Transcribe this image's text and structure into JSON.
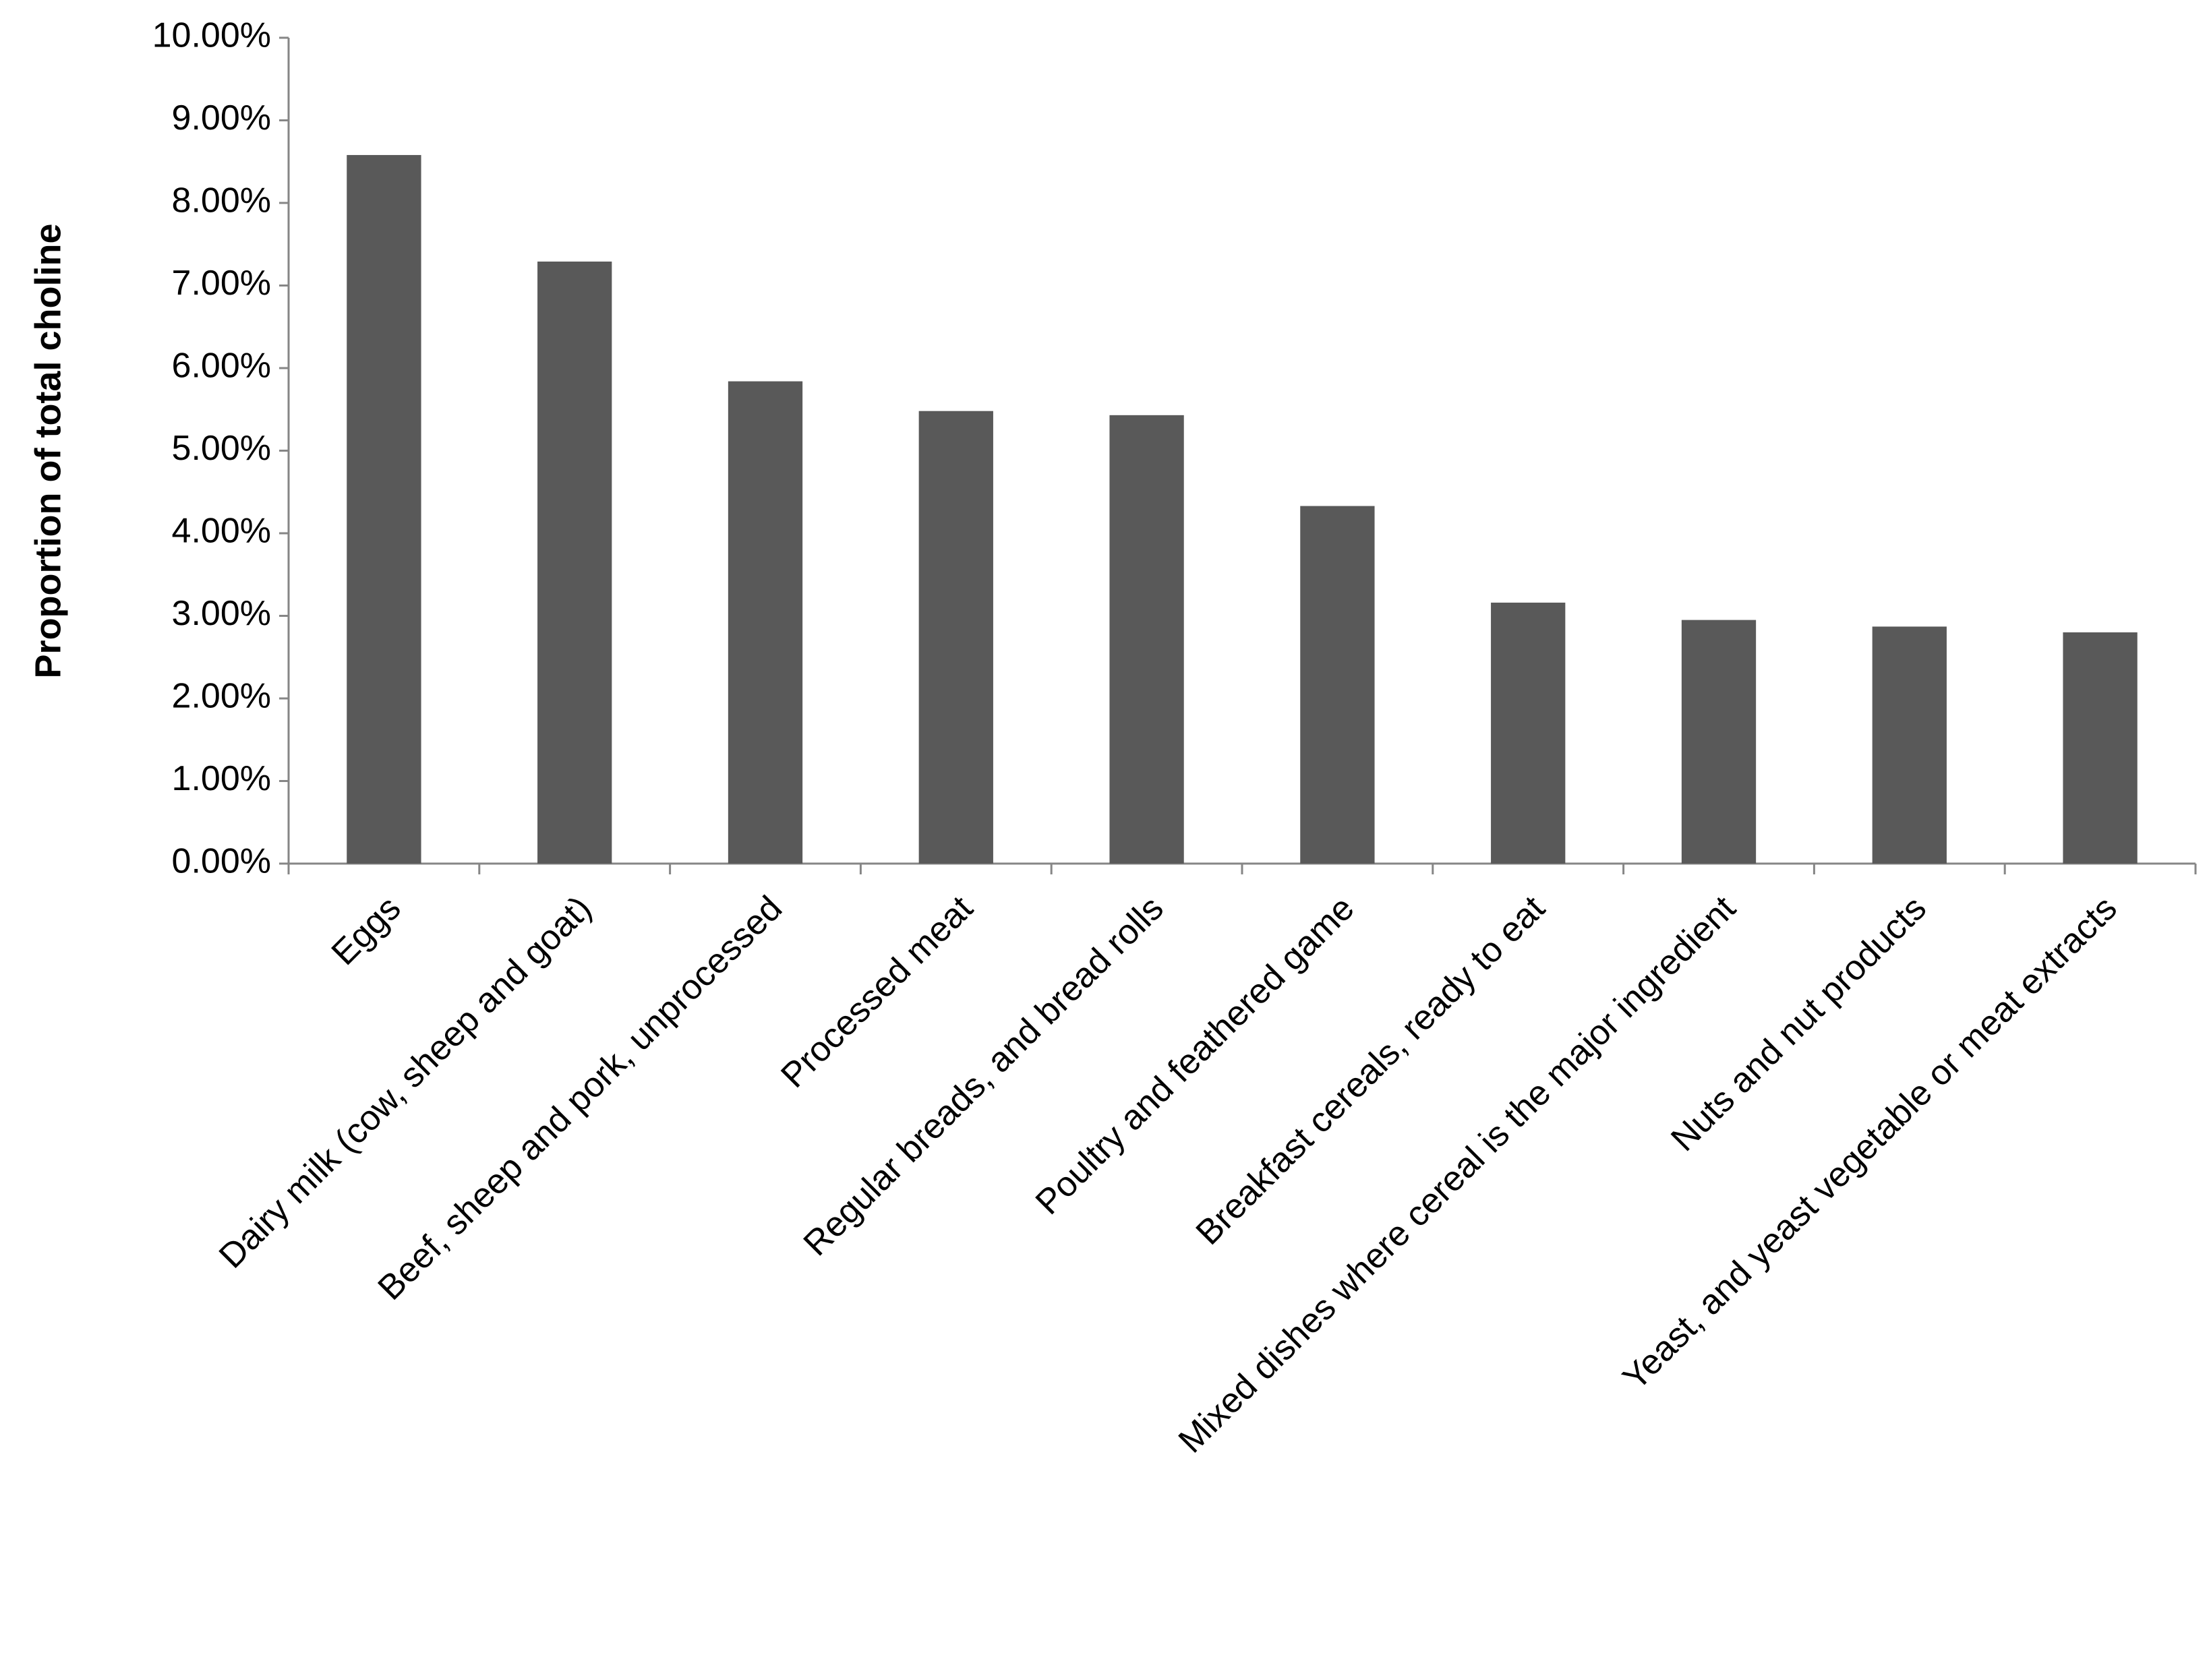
{
  "chart_data": {
    "type": "bar",
    "y_label": "Proportion of total choline",
    "categories": [
      "Eggs",
      "Dairy milk (cow, sheep and goat)",
      "Beef, sheep and pork, unprocessed",
      "Processed meat",
      "Regular breads, and bread rolls",
      "Poultry and feathered game",
      "Breakfast cereals, ready to eat",
      "Mixed dishes where cereal is the major ingredient",
      "Nuts and nut products",
      "Yeast, and yeast vegetable or meat extracts"
    ],
    "values": [
      8.58,
      7.29,
      5.84,
      5.48,
      5.43,
      4.33,
      3.16,
      2.95,
      2.87,
      2.8
    ],
    "color": "#595959",
    "ylim": [
      0,
      10
    ],
    "yticks": [
      {
        "value": 0,
        "label": "0.00%"
      },
      {
        "value": 1,
        "label": "1.00%"
      },
      {
        "value": 2,
        "label": "2.00%"
      },
      {
        "value": 3,
        "label": "3.00%"
      },
      {
        "value": 4,
        "label": "4.00%"
      },
      {
        "value": 5,
        "label": "5.00%"
      },
      {
        "value": 6,
        "label": "6.00%"
      },
      {
        "value": 7,
        "label": "7.00%"
      },
      {
        "value": 8,
        "label": "8.00%"
      },
      {
        "value": 9,
        "label": "9.00%"
      },
      {
        "value": 10,
        "label": "10.00%"
      }
    ],
    "grid": false
  }
}
